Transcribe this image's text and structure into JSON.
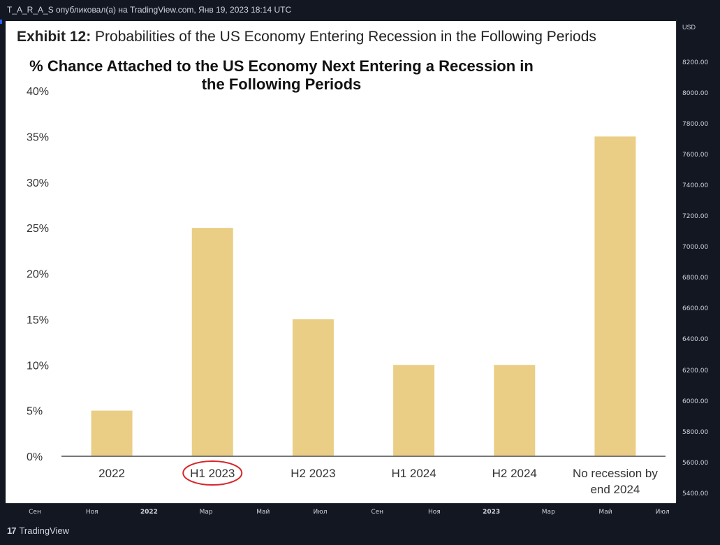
{
  "header": {
    "caption": "T_A_R_A_S опубликовал(а) на TradingView.com, Янв 19, 2023 18:14 UTC"
  },
  "image": {
    "exhibit_label": "Exhibit 12:",
    "exhibit_title": "Probabilities of the US Economy Entering Recession in the Following Periods"
  },
  "chart_data": {
    "type": "bar",
    "title_line1": "% Chance Attached to the US Economy Next Entering a Recession in",
    "title_line2": "the Following Periods",
    "categories": [
      "2022",
      "H1 2023",
      "H2 2023",
      "H1 2024",
      "H2 2024",
      "No recession by end 2024"
    ],
    "category_lines": [
      [
        "2022"
      ],
      [
        "H1 2023"
      ],
      [
        "H2 2023"
      ],
      [
        "H1 2024"
      ],
      [
        "H2 2024"
      ],
      [
        "No recession by",
        "end 2024"
      ]
    ],
    "values": [
      5,
      25,
      15,
      10,
      10,
      35
    ],
    "ylim": [
      0,
      40
    ],
    "yticks": [
      0,
      5,
      10,
      15,
      20,
      25,
      30,
      35,
      40
    ],
    "ytick_labels": [
      "0%",
      "5%",
      "10%",
      "15%",
      "20%",
      "25%",
      "30%",
      "35%",
      "40%"
    ],
    "highlighted_category": "H1 2023",
    "bar_color": "#ebce85",
    "highlight_color": "#d8262b",
    "grid": false,
    "legend": "none"
  },
  "price_axis": {
    "unit": "USD",
    "labels": [
      "8200.00",
      "8000.00",
      "7800.00",
      "7600.00",
      "7400.00",
      "7200.00",
      "7000.00",
      "6800.00",
      "6600.00",
      "6400.00",
      "6200.00",
      "6000.00",
      "5800.00",
      "5600.00",
      "5400.00"
    ]
  },
  "time_axis": {
    "labels": [
      {
        "text": "Сен",
        "bold": false
      },
      {
        "text": "Ноя",
        "bold": false
      },
      {
        "text": "2022",
        "bold": true
      },
      {
        "text": "Мар",
        "bold": false
      },
      {
        "text": "Май",
        "bold": false
      },
      {
        "text": "Июл",
        "bold": false
      },
      {
        "text": "Сен",
        "bold": false
      },
      {
        "text": "Ноя",
        "bold": false
      },
      {
        "text": "2023",
        "bold": true
      },
      {
        "text": "Мар",
        "bold": false
      },
      {
        "text": "Май",
        "bold": false
      },
      {
        "text": "Июл",
        "bold": false
      }
    ]
  },
  "footer": {
    "logo_mark": "17",
    "brand": "TradingView"
  }
}
